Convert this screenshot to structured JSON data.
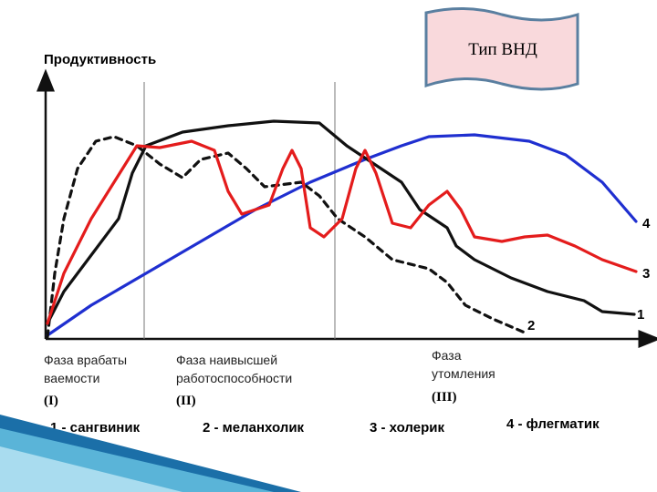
{
  "banner": {
    "title": "Тип ВНД"
  },
  "chart": {
    "y_axis_label": "Продуктивность",
    "phases": [
      {
        "lines": [
          "Фаза врабаты",
          "ваемости"
        ],
        "numeral": "(I)"
      },
      {
        "lines": [
          "Фаза наивысшей",
          "работоспособности"
        ],
        "numeral": "(II)"
      },
      {
        "lines": [
          "Фаза",
          "утомления"
        ],
        "numeral": "(III)"
      }
    ],
    "curve_labels": [
      "1",
      "2",
      "3",
      "4"
    ],
    "legend": [
      "1 - сангвиник",
      "2 - меланхолик",
      "3 - холерик",
      "4 - флегматик"
    ]
  }
}
